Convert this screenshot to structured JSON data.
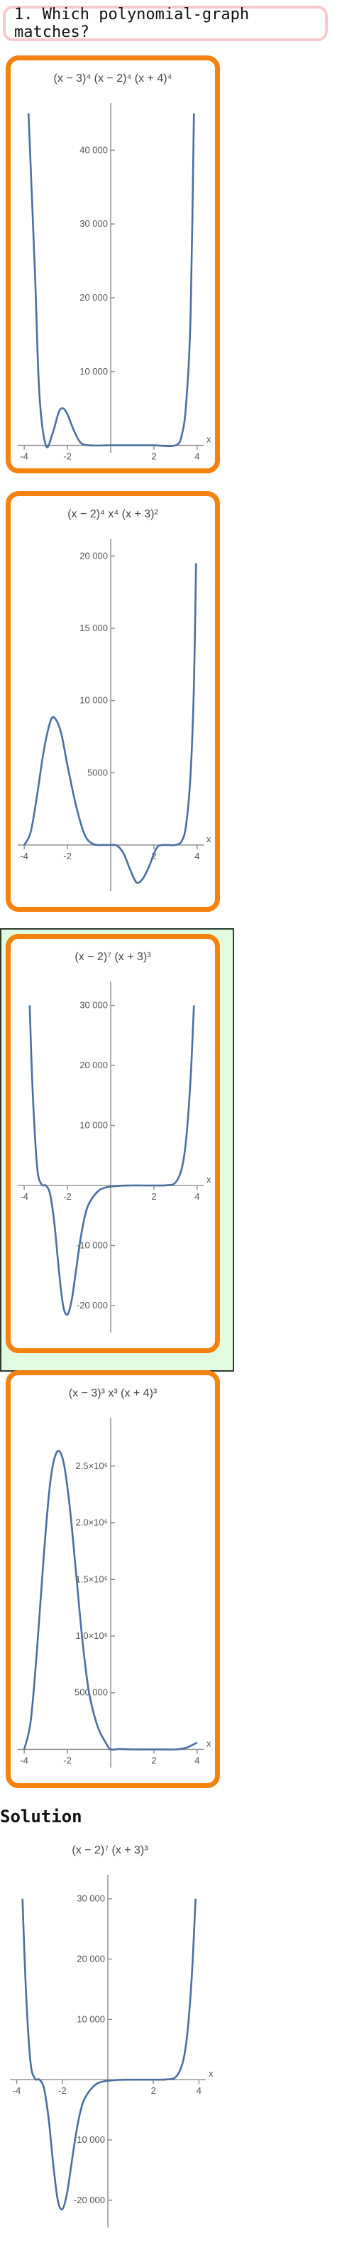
{
  "question": {
    "text": "1. Which polynomial-graph matches?"
  },
  "solution": {
    "heading": "Solution",
    "graph": 2
  },
  "colors": {
    "option_border": "#f5820f",
    "correct_background": "#e0fbe0",
    "curve": "#4a6f9e",
    "question_border": "#f6c9cc"
  },
  "chart_data": [
    {
      "type": "line",
      "title": "(x − 3)⁴ (x − 2)⁴ (x + 4)⁴",
      "xlabel": "x",
      "xlim": [
        -4.3,
        4.3
      ],
      "ylim": [
        -1000,
        46000
      ],
      "x_ticks": [
        {
          "v": -4,
          "t": "-4"
        },
        {
          "v": -2,
          "t": "-2"
        },
        {
          "v": 2,
          "t": "2"
        },
        {
          "v": 4,
          "t": "4"
        }
      ],
      "y_ticks": [
        {
          "v": 10000,
          "t": "10 000"
        },
        {
          "v": 20000,
          "t": "20 000"
        },
        {
          "v": 30000,
          "t": "30 000"
        },
        {
          "v": 40000,
          "t": "40 000"
        }
      ],
      "series": [
        {
          "points": [
            [
              -3.8,
              45000
            ],
            [
              -3.5,
              23000
            ],
            [
              -3.3,
              7000
            ],
            [
              -3,
              0
            ],
            [
              -2.7,
              1500
            ],
            [
              -2.4,
              4500
            ],
            [
              -2.2,
              5000
            ],
            [
              -2,
              4200
            ],
            [
              -1.7,
              2000
            ],
            [
              -1.4,
              400
            ],
            [
              -1,
              0
            ],
            [
              0,
              0
            ],
            [
              1,
              0
            ],
            [
              2,
              0
            ],
            [
              3,
              0
            ],
            [
              3.3,
              1500
            ],
            [
              3.5,
              6000
            ],
            [
              3.7,
              18000
            ],
            [
              3.85,
              45000
            ]
          ]
        }
      ]
    },
    {
      "type": "line",
      "title": "(x − 2)⁴ x⁴ (x + 3)²",
      "xlabel": "x",
      "xlim": [
        -4.3,
        4.3
      ],
      "ylim": [
        -3200,
        21000
      ],
      "x_ticks": [
        {
          "v": -4,
          "t": "-4"
        },
        {
          "v": -2,
          "t": "-2"
        },
        {
          "v": 2,
          "t": "2"
        },
        {
          "v": 4,
          "t": "4"
        }
      ],
      "y_ticks": [
        {
          "v": 5000,
          "t": "5000"
        },
        {
          "v": 10000,
          "t": "10 000"
        },
        {
          "v": 15000,
          "t": "15 000"
        },
        {
          "v": 20000,
          "t": "20 000"
        }
      ],
      "series": [
        {
          "points": [
            [
              -4,
              0
            ],
            [
              -3.7,
              900
            ],
            [
              -3.4,
              3500
            ],
            [
              -3.1,
              6500
            ],
            [
              -2.8,
              8500
            ],
            [
              -2.6,
              8800
            ],
            [
              -2.3,
              7800
            ],
            [
              -2,
              5500
            ],
            [
              -1.6,
              2700
            ],
            [
              -1.2,
              700
            ],
            [
              -0.8,
              60
            ],
            [
              -0.3,
              0
            ],
            [
              0,
              0
            ],
            [
              0.3,
              -50
            ],
            [
              0.6,
              -600
            ],
            [
              0.9,
              -1700
            ],
            [
              1.2,
              -2600
            ],
            [
              1.5,
              -2300
            ],
            [
              1.8,
              -1400
            ],
            [
              2,
              -600
            ],
            [
              2.2,
              -80
            ],
            [
              2.5,
              0
            ],
            [
              3,
              0
            ],
            [
              3.3,
              300
            ],
            [
              3.5,
              1500
            ],
            [
              3.7,
              5000
            ],
            [
              3.85,
              11000
            ],
            [
              3.95,
              19500
            ]
          ]
        }
      ]
    },
    {
      "type": "line",
      "title": "(x − 2)⁷ (x + 3)³",
      "xlabel": "x",
      "xlim": [
        -4.3,
        4.3
      ],
      "ylim": [
        -24500,
        33500
      ],
      "x_ticks": [
        {
          "v": -4,
          "t": "-4"
        },
        {
          "v": -2,
          "t": "-2"
        },
        {
          "v": 2,
          "t": "2"
        },
        {
          "v": 4,
          "t": "4"
        }
      ],
      "y_ticks": [
        {
          "v": -20000,
          "t": "-20 000"
        },
        {
          "v": -10000,
          "t": "-10 000"
        },
        {
          "v": 10000,
          "t": "10 000"
        },
        {
          "v": 20000,
          "t": "20 000"
        },
        {
          "v": 30000,
          "t": "30 000"
        }
      ],
      "series": [
        {
          "points": [
            [
              -3.75,
              30000
            ],
            [
              -3.6,
              15000
            ],
            [
              -3.4,
              3000
            ],
            [
              -3.2,
              200
            ],
            [
              -3,
              0
            ],
            [
              -2.8,
              -1500
            ],
            [
              -2.6,
              -6500
            ],
            [
              -2.4,
              -14000
            ],
            [
              -2.2,
              -20000
            ],
            [
              -2,
              -21500
            ],
            [
              -1.8,
              -19000
            ],
            [
              -1.6,
              -14000
            ],
            [
              -1.4,
              -9000
            ],
            [
              -1.2,
              -5200
            ],
            [
              -1,
              -3000
            ],
            [
              -0.6,
              -1000
            ],
            [
              -0.2,
              -300
            ],
            [
              0.4,
              -50
            ],
            [
              1,
              0
            ],
            [
              2,
              0
            ],
            [
              2.6,
              40
            ],
            [
              3,
              500
            ],
            [
              3.3,
              3000
            ],
            [
              3.5,
              8000
            ],
            [
              3.7,
              18000
            ],
            [
              3.85,
              30000
            ]
          ]
        }
      ]
    },
    {
      "type": "line",
      "title": "(x − 3)³ x³ (x + 4)³",
      "xlabel": "x",
      "xlim": [
        -4.3,
        4.3
      ],
      "ylim": [
        -160000,
        2900000
      ],
      "x_ticks": [
        {
          "v": -4,
          "t": "-4"
        },
        {
          "v": -2,
          "t": "-2"
        },
        {
          "v": 2,
          "t": "2"
        },
        {
          "v": 4,
          "t": "4"
        }
      ],
      "y_ticks": [
        {
          "v": 500000,
          "t": "500 000"
        },
        {
          "v": 1000000,
          "t": "1.0×10⁶"
        },
        {
          "v": 1500000,
          "t": "1.5×10⁶"
        },
        {
          "v": 2000000,
          "t": "2.0×10⁶"
        },
        {
          "v": 2500000,
          "t": "2.5×10⁶"
        }
      ],
      "series": [
        {
          "points": [
            [
              -4,
              0
            ],
            [
              -3.7,
              250000
            ],
            [
              -3.4,
              900000
            ],
            [
              -3.1,
              1700000
            ],
            [
              -2.8,
              2350000
            ],
            [
              -2.5,
              2620000
            ],
            [
              -2.2,
              2550000
            ],
            [
              -1.9,
              2150000
            ],
            [
              -1.6,
              1550000
            ],
            [
              -1.3,
              950000
            ],
            [
              -1,
              500000
            ],
            [
              -0.6,
              200000
            ],
            [
              -0.2,
              50000
            ],
            [
              0,
              0
            ],
            [
              0.4,
              3000
            ],
            [
              1,
              0
            ],
            [
              2,
              0
            ],
            [
              3,
              0
            ],
            [
              3.5,
              15000
            ],
            [
              4,
              60000
            ]
          ]
        }
      ]
    }
  ]
}
